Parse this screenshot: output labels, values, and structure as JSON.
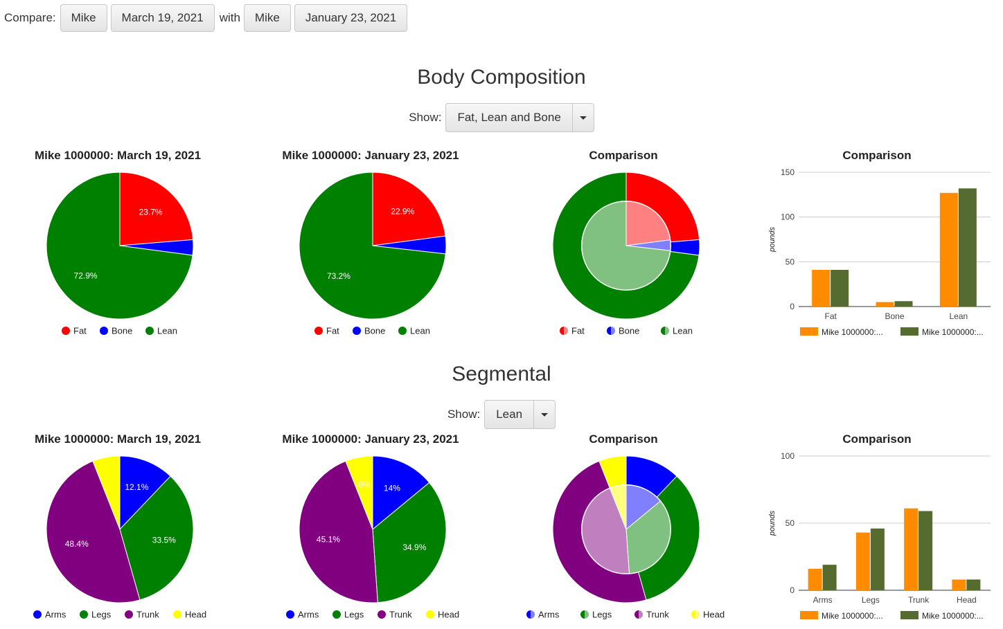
{
  "compare": {
    "label": "Compare:",
    "with_label": "with",
    "left_person": "Mike",
    "left_date": "March 19, 2021",
    "right_person": "Mike",
    "right_date": "January 23, 2021"
  },
  "body_composition": {
    "title": "Body Composition",
    "show_label": "Show:",
    "show_value": "Fat, Lean and Bone"
  },
  "segmental": {
    "title": "Segmental",
    "show_label": "Show:",
    "show_value": "Lean"
  },
  "colors": {
    "fat": "#ff0000",
    "bone": "#0000ff",
    "lean": "#008000",
    "arms": "#0000ff",
    "legs": "#008000",
    "trunk": "#800080",
    "head": "#ffff00",
    "bar_a": "#ff8c00",
    "bar_b": "#556b2f"
  },
  "chart_data": [
    {
      "id": "bc_pie_a",
      "type": "pie",
      "title": "Mike 1000000: March 19, 2021",
      "categories": [
        "Fat",
        "Bone",
        "Lean"
      ],
      "values": [
        23.7,
        3.4,
        72.9
      ],
      "labels": [
        "23.7%",
        "",
        "72.9%"
      ],
      "colors": [
        "#ff0000",
        "#0000ff",
        "#008000"
      ]
    },
    {
      "id": "bc_pie_b",
      "type": "pie",
      "title": "Mike 1000000: January 23, 2021",
      "categories": [
        "Fat",
        "Bone",
        "Lean"
      ],
      "values": [
        22.9,
        3.9,
        73.2
      ],
      "labels": [
        "22.9%",
        "",
        "73.2%"
      ],
      "colors": [
        "#ff0000",
        "#0000ff",
        "#008000"
      ]
    },
    {
      "id": "bc_pie_cmp",
      "type": "pie",
      "title": "Comparison",
      "categories": [
        "Fat",
        "Bone",
        "Lean"
      ],
      "outer_values": [
        23.7,
        3.4,
        72.9
      ],
      "inner_values": [
        22.9,
        3.9,
        73.2
      ],
      "colors": [
        "#ff0000",
        "#0000ff",
        "#008000"
      ],
      "inner_colors": [
        "#ff8080",
        "#8080ff",
        "#80c080"
      ]
    },
    {
      "id": "bc_bar",
      "type": "bar",
      "title": "Comparison",
      "categories": [
        "Fat",
        "Bone",
        "Lean"
      ],
      "series": [
        {
          "name": "Mike 1000000:...",
          "values": [
            41,
            5,
            127
          ],
          "color": "#ff8c00"
        },
        {
          "name": "Mike 1000000:...",
          "values": [
            41,
            6,
            132
          ],
          "color": "#556b2f"
        }
      ],
      "ylabel": "pounds",
      "ylim": [
        0,
        150
      ],
      "yticks": [
        0,
        50,
        100,
        150
      ]
    },
    {
      "id": "seg_pie_a",
      "type": "pie",
      "title": "Mike 1000000: March 19, 2021",
      "categories": [
        "Arms",
        "Legs",
        "Trunk",
        "Head"
      ],
      "values": [
        12.1,
        33.5,
        48.4,
        6.0
      ],
      "labels": [
        "12.1%",
        "33.5%",
        "48.4%",
        ""
      ],
      "colors": [
        "#0000ff",
        "#008000",
        "#800080",
        "#ffff00"
      ]
    },
    {
      "id": "seg_pie_b",
      "type": "pie",
      "title": "Mike 1000000: January 23, 2021",
      "categories": [
        "Arms",
        "Legs",
        "Trunk",
        "Head"
      ],
      "values": [
        14.0,
        34.9,
        45.1,
        6.0
      ],
      "labels": [
        "14%",
        "34.9%",
        "45.1%",
        "6%"
      ],
      "colors": [
        "#0000ff",
        "#008000",
        "#800080",
        "#ffff00"
      ]
    },
    {
      "id": "seg_pie_cmp",
      "type": "pie",
      "title": "Comparison",
      "categories": [
        "Arms",
        "Legs",
        "Trunk",
        "Head"
      ],
      "outer_values": [
        12.1,
        33.5,
        48.4,
        6.0
      ],
      "inner_values": [
        14.0,
        34.9,
        45.1,
        6.0
      ],
      "colors": [
        "#0000ff",
        "#008000",
        "#800080",
        "#ffff00"
      ],
      "inner_colors": [
        "#8080ff",
        "#80c080",
        "#c080c0",
        "#ffff80"
      ]
    },
    {
      "id": "seg_bar",
      "type": "bar",
      "title": "Comparison",
      "categories": [
        "Arms",
        "Legs",
        "Trunk",
        "Head"
      ],
      "series": [
        {
          "name": "Mike 1000000:...",
          "values": [
            16,
            43,
            61,
            8
          ],
          "color": "#ff8c00"
        },
        {
          "name": "Mike 1000000:...",
          "values": [
            19,
            46,
            59,
            8
          ],
          "color": "#556b2f"
        }
      ],
      "ylabel": "pounds",
      "ylim": [
        0,
        100
      ],
      "yticks": [
        0,
        50,
        100
      ]
    }
  ]
}
